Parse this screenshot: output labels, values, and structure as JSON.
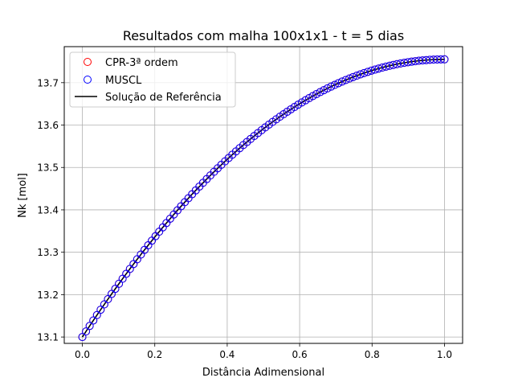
{
  "chart_data": {
    "type": "scatter",
    "title": "Resultados com malha 100x1x1 - t = 5 dias",
    "xlabel": "Distância Adimensional",
    "ylabel": "Nk [mol]",
    "xlim": [
      -0.05,
      1.05
    ],
    "ylim": [
      13.085,
      13.785
    ],
    "xticks": [
      0.0,
      0.2,
      0.4,
      0.6,
      0.8,
      1.0
    ],
    "xtick_labels": [
      "0.0",
      "0.2",
      "0.4",
      "0.6",
      "0.8",
      "1.0"
    ],
    "yticks": [
      13.1,
      13.2,
      13.3,
      13.4,
      13.5,
      13.6,
      13.7
    ],
    "ytick_labels": [
      "13.1",
      "13.2",
      "13.3",
      "13.4",
      "13.5",
      "13.6",
      "13.7"
    ],
    "grid": true,
    "legend_position": "top-left",
    "curve_model": {
      "y0": 13.1,
      "y1": 13.755,
      "shape": "saturating curve, zero slope at x = 1"
    },
    "series": [
      {
        "name": "CPR-3ª ordem",
        "kind": "scatter",
        "marker": "open-circle",
        "color": "#ff0000",
        "n_points": 100
      },
      {
        "name": "MUSCL",
        "kind": "scatter",
        "marker": "open-circle",
        "color": "#0000ff",
        "n_points": 100
      },
      {
        "name": "Solução de Referência",
        "kind": "line",
        "color": "#000000"
      }
    ]
  }
}
